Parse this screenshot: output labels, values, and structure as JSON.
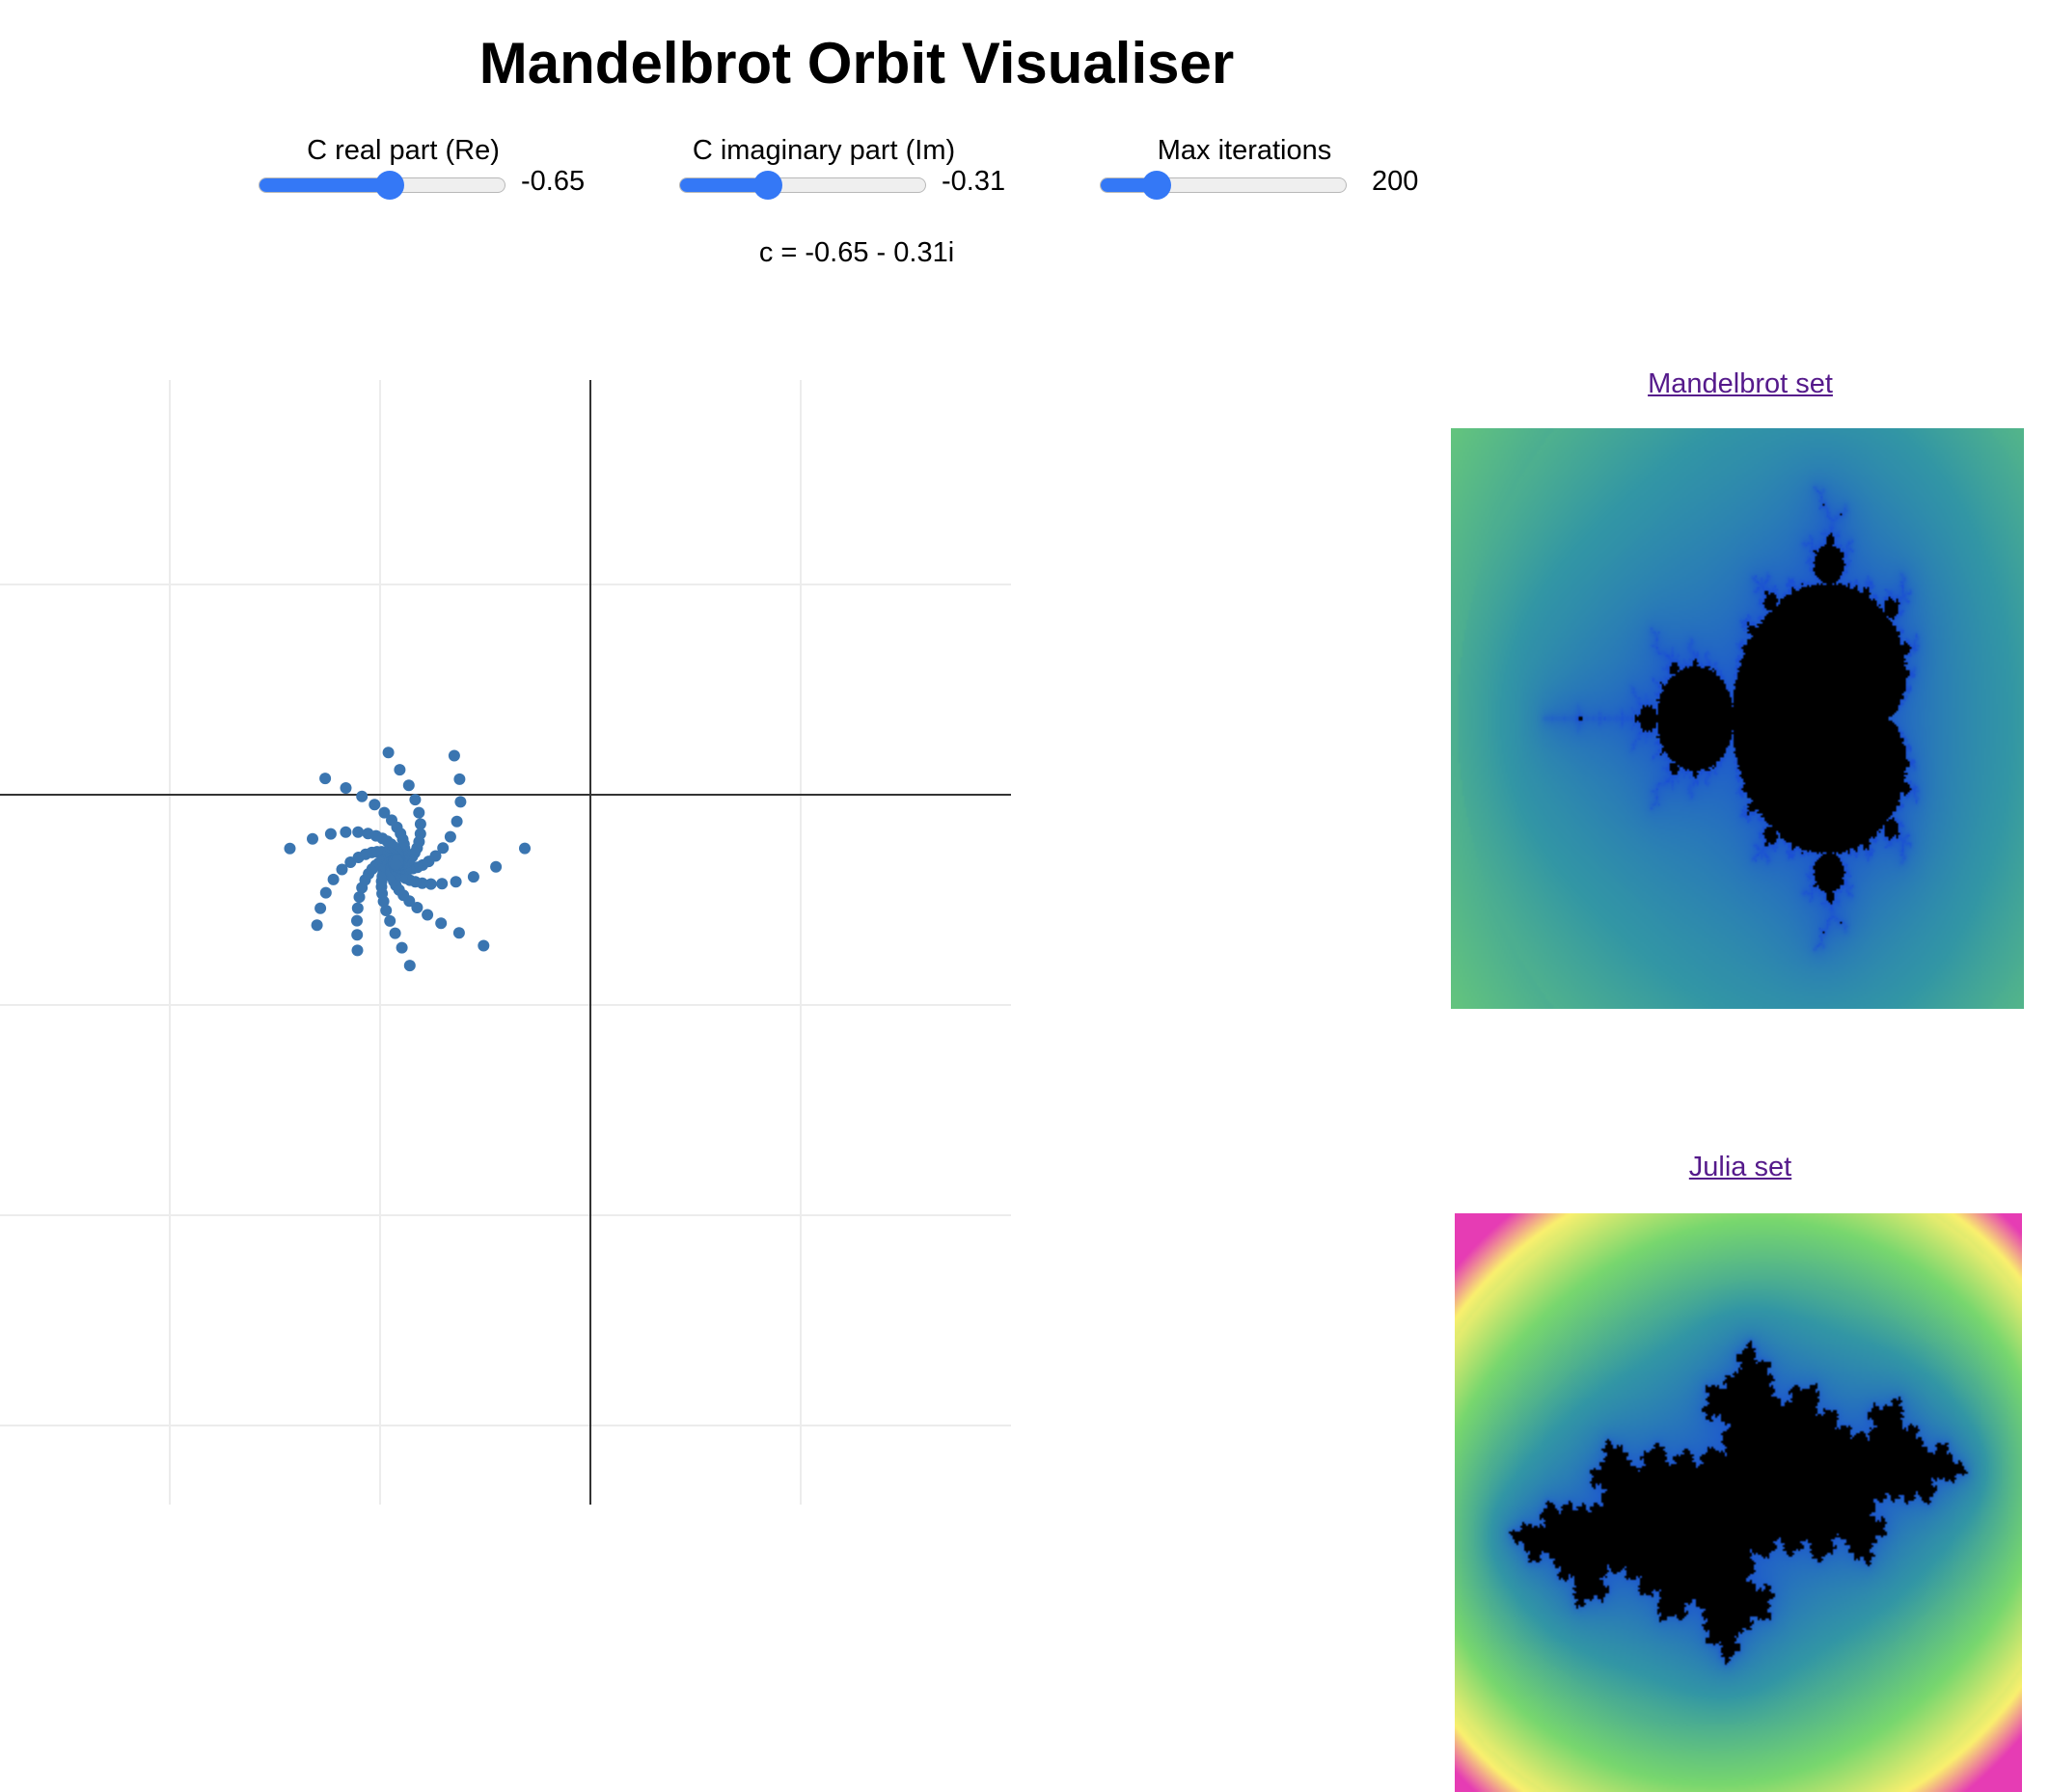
{
  "title": "Mandelbrot Orbit Visualiser",
  "controls": {
    "re": {
      "label": "C real part (Re)",
      "value": "-0.65",
      "position": 0.53
    },
    "im": {
      "label": "C imaginary part (Im)",
      "value": "-0.31",
      "position": 0.36
    },
    "iter": {
      "label": "Max iterations",
      "value": "200",
      "position": 0.23
    }
  },
  "readout": "c = -0.65 - 0.31i",
  "colors": {
    "accent": "#3478f6",
    "orbit_point": "#3a75b0",
    "link": "#551a8b"
  },
  "orbit": {
    "c_re": -0.65,
    "c_im": -0.31,
    "max_iterations": 200
  },
  "links": {
    "mandelbrot": "Mandelbrot set",
    "julia": "Julia set"
  },
  "fractals": {
    "mandelbrot": {
      "re_range": [
        -2.6,
        1.15
      ],
      "im_range": [
        -1.4,
        1.4
      ]
    },
    "julia": {
      "re_range": [
        -1.8,
        1.8
      ],
      "im_range": [
        -1.6,
        1.6
      ]
    }
  }
}
